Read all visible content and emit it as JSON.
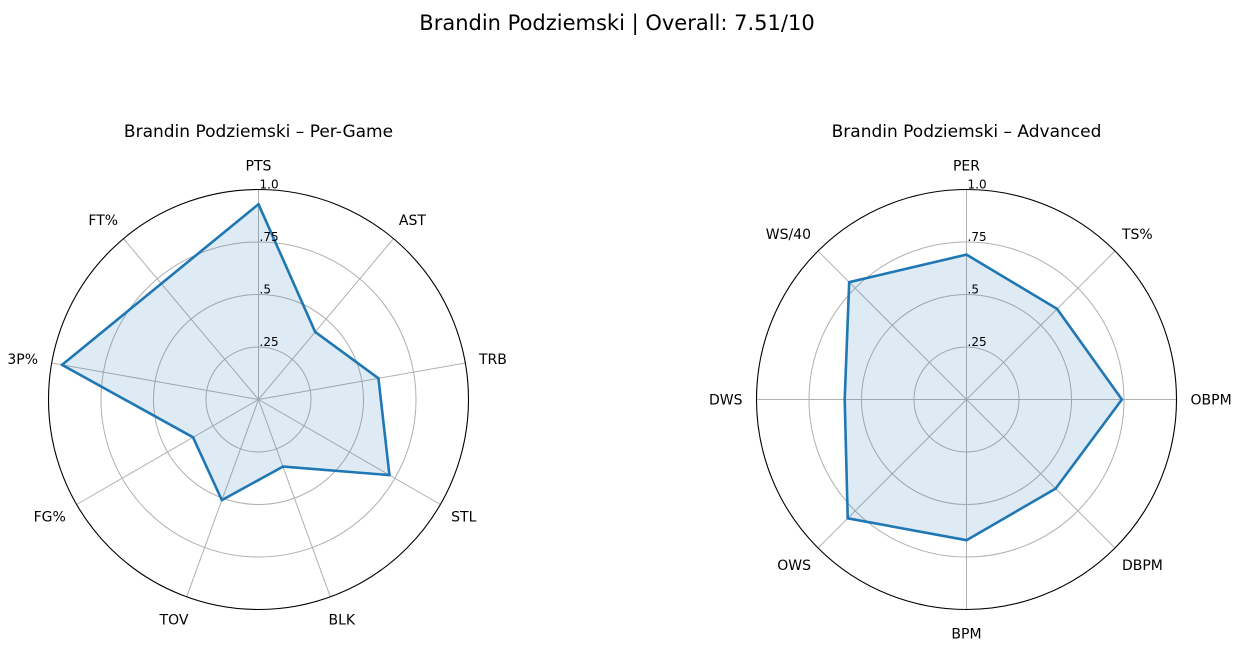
{
  "figure": {
    "title": "Brandin Podziemski | Overall: 7.51/10"
  },
  "chart_data": [
    {
      "type": "radar",
      "title": "Brandin Podziemski – Per-Game",
      "categories": [
        "PTS",
        "AST",
        "TRB",
        "STL",
        "BLK",
        "TOV",
        "FG%",
        "3P%",
        "FT%"
      ],
      "values": [
        0.93,
        0.42,
        0.58,
        0.72,
        0.34,
        0.51,
        0.36,
        0.95,
        0.72
      ],
      "rlim": [
        0,
        1
      ],
      "rticks": [
        0.25,
        0.5,
        0.75,
        1.0
      ],
      "rtick_labels": [
        ".25",
        ".5",
        ".75",
        "1.0"
      ],
      "grid": true,
      "line_color": "#1f77b4",
      "fill_color": "#1f77b4",
      "fill_alpha": 0.15
    },
    {
      "type": "radar",
      "title": "Brandin Podziemski – Advanced",
      "categories": [
        "PER",
        "TS%",
        "OBPM",
        "DBPM",
        "BPM",
        "OWS",
        "DWS",
        "WS/40"
      ],
      "values": [
        0.69,
        0.61,
        0.74,
        0.6,
        0.67,
        0.8,
        0.58,
        0.79
      ],
      "rlim": [
        0,
        1
      ],
      "rticks": [
        0.25,
        0.5,
        0.75,
        1.0
      ],
      "rtick_labels": [
        ".25",
        ".5",
        ".75",
        "1.0"
      ],
      "grid": true,
      "line_color": "#1f77b4",
      "fill_color": "#1f77b4",
      "fill_alpha": 0.15
    }
  ]
}
